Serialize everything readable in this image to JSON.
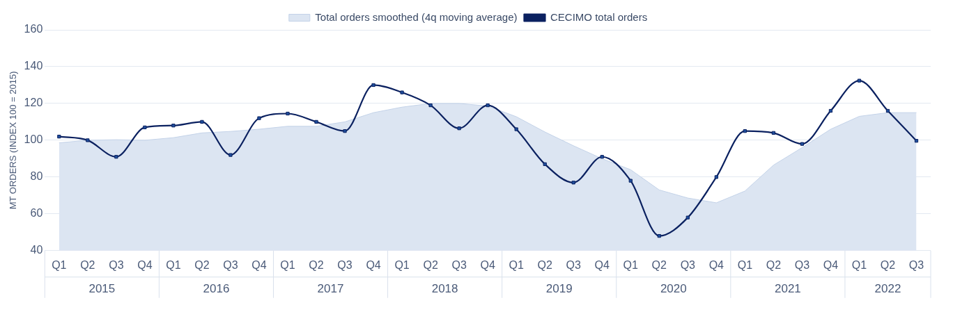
{
  "chart_data": {
    "type": "line",
    "ylabel": "MT ORDERS (INDEX 100 = 2015)",
    "categories": [
      "Q1",
      "Q2",
      "Q3",
      "Q4",
      "Q1",
      "Q2",
      "Q3",
      "Q4",
      "Q1",
      "Q2",
      "Q3",
      "Q4",
      "Q1",
      "Q2",
      "Q3",
      "Q4",
      "Q1",
      "Q2",
      "Q3",
      "Q4",
      "Q1",
      "Q2",
      "Q3",
      "Q4",
      "Q1",
      "Q2",
      "Q3",
      "Q4",
      "Q1",
      "Q2",
      "Q3"
    ],
    "annotations": [
      "2015",
      "2016",
      "2017",
      "2018",
      "2019",
      "2020",
      "2021",
      "2022"
    ],
    "series": [
      {
        "name": "Total orders smoothed (4q moving average)",
        "type": "area",
        "color": "#dce5f2",
        "values": [
          98.6,
          100,
          100.3,
          100,
          101.4,
          104,
          104.8,
          106,
          107.6,
          107.6,
          110,
          115,
          118,
          120,
          120,
          118.6,
          112.8,
          104.5,
          97,
          90,
          84,
          73,
          68.6,
          66,
          72.4,
          86.5,
          96,
          106,
          113,
          115,
          115
        ]
      },
      {
        "name": "CECIMO total orders",
        "type": "line",
        "color": "#0b2160",
        "marker": "square",
        "values": [
          102,
          100,
          91,
          107,
          108,
          110,
          92,
          112,
          114.5,
          110,
          105,
          130,
          126,
          119,
          106.5,
          119,
          106,
          87,
          77,
          91,
          78,
          48,
          58,
          80,
          105,
          104,
          98,
          116,
          132.4,
          116,
          99.7
        ]
      }
    ],
    "ylim": [
      40,
      160
    ],
    "yticks": [
      40,
      60,
      80,
      100,
      120,
      140,
      160
    ],
    "grid": "y",
    "legend": "top"
  }
}
